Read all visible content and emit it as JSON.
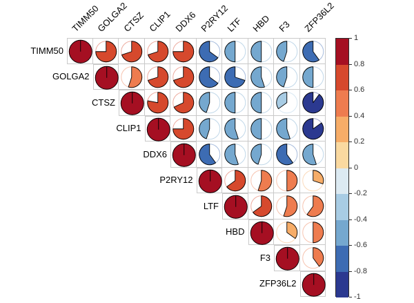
{
  "figure": {
    "background": "#ffffff",
    "grid_line_color": "#c9c9c9",
    "pie_outline_color": "#000000"
  },
  "chart_data": {
    "type": "heatmap",
    "subtype": "correlation-pie-matrix",
    "title": "",
    "labels": [
      "TIMM50",
      "GOLGA2",
      "CTSZ",
      "CLIP1",
      "DDX6",
      "P2RY12",
      "LTF",
      "HBD",
      "F3",
      "ZFP36L2"
    ],
    "matrix": [
      [
        1,
        0.75,
        0.7,
        0.7,
        0.75,
        -0.65,
        -0.5,
        -0.5,
        -0.45,
        -0.6
      ],
      [
        null,
        1,
        0.55,
        0.7,
        0.7,
        -0.65,
        -0.7,
        -0.55,
        -0.45,
        -0.5
      ],
      [
        null,
        null,
        1,
        0.78,
        0.68,
        -0.45,
        -0.5,
        -0.5,
        -0.35,
        -0.9
      ],
      [
        null,
        null,
        null,
        1,
        0.75,
        -0.45,
        -0.55,
        -0.5,
        -0.55,
        -0.85
      ],
      [
        null,
        null,
        null,
        null,
        1,
        -0.6,
        -0.55,
        -0.45,
        -0.6,
        -0.55
      ],
      [
        null,
        null,
        null,
        null,
        null,
        1,
        0.65,
        0.55,
        0.5,
        0.3
      ],
      [
        null,
        null,
        null,
        null,
        null,
        null,
        1,
        0.65,
        0.55,
        0.6
      ],
      [
        null,
        null,
        null,
        null,
        null,
        null,
        null,
        1,
        0.35,
        0.5
      ],
      [
        null,
        null,
        null,
        null,
        null,
        null,
        null,
        null,
        1,
        0.4
      ],
      [
        null,
        null,
        null,
        null,
        null,
        null,
        null,
        null,
        null,
        1
      ]
    ],
    "triangle": "upper",
    "grid": true,
    "bin_colors": [
      "#A50F22",
      "#D6492D",
      "#EE7C4F",
      "#F7AD68",
      "#FAD9A0",
      "#DCEAF2",
      "#A8CCE4",
      "#75A8CF",
      "#3D6CB3",
      "#2B3990"
    ],
    "legend": {
      "position": "right",
      "range": [
        -1,
        1
      ],
      "ticks": [
        "1",
        "0.8",
        "0.6",
        "0.4",
        "0.2",
        "0",
        "-0.2",
        "-0.4",
        "-0.6",
        "-0.8",
        "-1"
      ]
    }
  }
}
